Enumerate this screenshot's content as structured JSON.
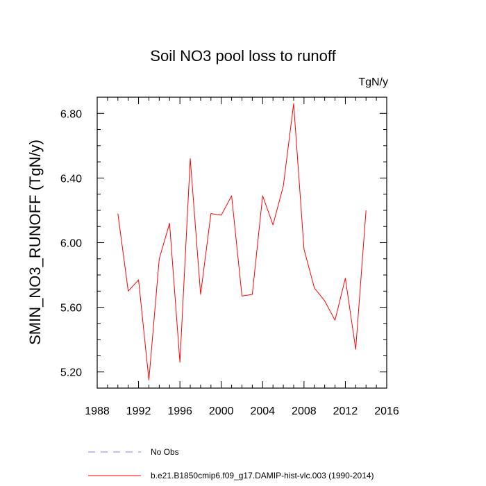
{
  "chart_data": {
    "type": "line",
    "title": "Soil NO3 pool loss to runoff",
    "units": "TgN/y",
    "ylabel": "SMIN_NO3_RUNOFF  (TgN/y)",
    "xlabel": "",
    "xlim": [
      1988,
      2016
    ],
    "ylim": [
      5.1,
      6.9
    ],
    "x_ticks": [
      1988,
      1992,
      1996,
      2000,
      2004,
      2008,
      2012,
      2016
    ],
    "y_ticks": [
      5.2,
      5.6,
      6.0,
      6.4,
      6.8
    ],
    "y_tick_labels": [
      "5.20",
      "5.60",
      "6.00",
      "6.40",
      "6.80"
    ],
    "grid": false,
    "legend_position": "bottom",
    "series": [
      {
        "name": "No Obs",
        "color": "#8080f0",
        "dash": "dashed",
        "x": [],
        "values": []
      },
      {
        "name": "b.e21.B1850cmip6.f09_g17.DAMIP-hist-vlc.003 (1990-2014)",
        "color": "#ff0000",
        "dash": "solid",
        "x": [
          1990,
          1991,
          1992,
          1993,
          1994,
          1995,
          1996,
          1997,
          1998,
          1999,
          2000,
          2001,
          2002,
          2003,
          2004,
          2005,
          2006,
          2007,
          2008,
          2009,
          2010,
          2011,
          2012,
          2013,
          2014
        ],
        "values": [
          6.18,
          5.7,
          5.77,
          5.15,
          5.9,
          6.12,
          5.26,
          6.52,
          5.68,
          6.18,
          6.17,
          6.29,
          5.67,
          5.68,
          6.29,
          6.11,
          6.35,
          6.86,
          5.96,
          5.72,
          5.64,
          5.52,
          5.78,
          5.34,
          6.2
        ]
      }
    ]
  }
}
